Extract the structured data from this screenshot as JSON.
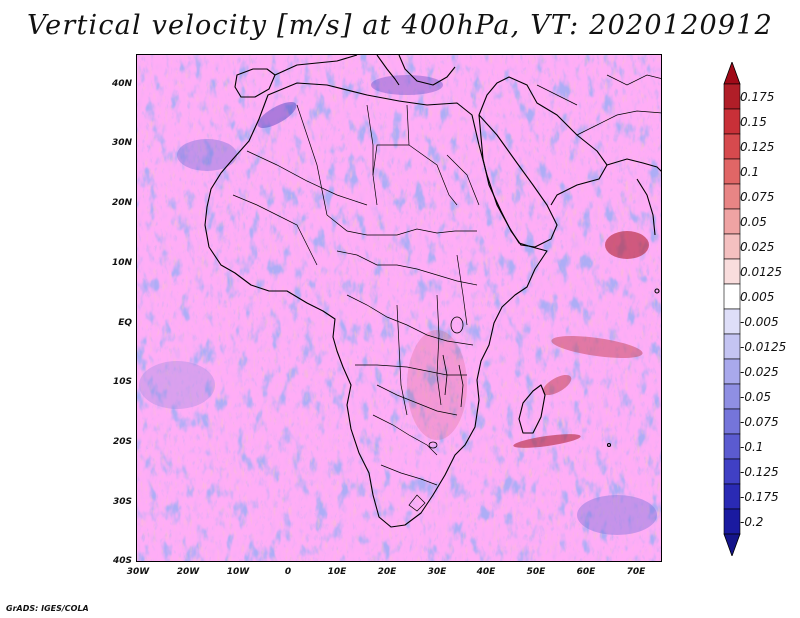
{
  "title": "Vertical velocity [m/s] at 400hPa, VT: 2020120912",
  "map": {
    "lat_labels": [
      "40N",
      "30N",
      "20N",
      "10N",
      "EQ",
      "10S",
      "20S",
      "30S",
      "40S"
    ],
    "lon_labels": [
      "30W",
      "20W",
      "10W",
      "0",
      "10E",
      "20E",
      "30E",
      "40E",
      "50E",
      "60E",
      "70E"
    ]
  },
  "colorbar": {
    "labels": [
      "0.175",
      "0.15",
      "0.125",
      "0.1",
      "0.075",
      "0.05",
      "0.025",
      "0.0125",
      "0.005",
      "-0.005",
      "-0.0125",
      "-0.025",
      "-0.05",
      "-0.075",
      "-0.1",
      "-0.125",
      "-0.175",
      "-0.2"
    ],
    "colors": [
      "#b01e28",
      "#c83038",
      "#d64a4e",
      "#e06666",
      "#e88585",
      "#efa3a3",
      "#f4c0c0",
      "#f9dddd",
      "#ffffff",
      "#dedef8",
      "#c4c4f2",
      "#a9a9ec",
      "#8f8fe3",
      "#7575da",
      "#5b5bd0",
      "#4040c4",
      "#2a2ab4",
      "#1a1aa0"
    ],
    "max_color": "#a00a18",
    "min_color": "#14148a"
  },
  "credit": "GrADS: IGES/COLA"
}
